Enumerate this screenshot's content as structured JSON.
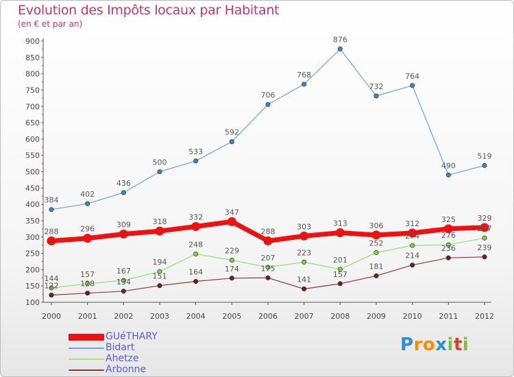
{
  "title": "Evolution des Impôts locaux par Habitant",
  "subtitle": "(en € et par an)",
  "logo": {
    "text": "Proxiti",
    "letter_colors": [
      "#2a8fd8",
      "#ff8a00",
      "#ff8a00",
      "#2a8fd8",
      "#7ac143",
      "#e03c31",
      "#7ac143"
    ]
  },
  "chart_data": {
    "type": "line",
    "x": [
      2000,
      2001,
      2002,
      2003,
      2004,
      2005,
      2006,
      2007,
      2008,
      2009,
      2010,
      2011,
      2012
    ],
    "ylim": [
      100,
      900
    ],
    "yticks": [
      100,
      150,
      200,
      250,
      300,
      350,
      400,
      450,
      500,
      550,
      600,
      650,
      700,
      750,
      800,
      850,
      900
    ],
    "grid": false,
    "legend_position": "bottom-left",
    "series": [
      {
        "name": "Bidart",
        "color": "#6ba3d6",
        "marker": "#3d84c8",
        "width": 1.2,
        "r": 3.2,
        "values": [
          384,
          402,
          436,
          500,
          533,
          592,
          706,
          768,
          876,
          732,
          764,
          490,
          519
        ]
      },
      {
        "name": "Ahetze",
        "color": "#a8e08a",
        "marker": "#7fd14a",
        "width": 1.5,
        "r": 3.2,
        "values": [
          144,
          157,
          167,
          194,
          248,
          229,
          207,
          223,
          201,
          252,
          274,
          276,
          297
        ]
      },
      {
        "name": "Arbonne",
        "color": "#8a3a3a",
        "marker": "#6e2020",
        "width": 1.2,
        "r": 3.2,
        "values": [
          122,
          128,
          134,
          151,
          164,
          174,
          175,
          141,
          157,
          181,
          214,
          236,
          239
        ]
      },
      {
        "name": "GUéTHARY",
        "color": "#ee1111",
        "marker": "#ee1111",
        "width": 7,
        "r": 6.5,
        "values": [
          288,
          296,
          309,
          318,
          332,
          347,
          288,
          303,
          313,
          306,
          312,
          325,
          329
        ]
      }
    ],
    "data_labels": [
      {
        "series": 0,
        "labels": [
          "384",
          "402",
          "436",
          "500",
          "533",
          "592",
          "706",
          "768",
          "876",
          "732",
          "764",
          "490",
          "519"
        ]
      },
      {
        "series": 3,
        "labels": [
          "288",
          "296",
          "309",
          "318",
          "332",
          "347",
          "288",
          "303",
          "313",
          "306",
          "312",
          "325",
          "329"
        ]
      },
      {
        "series": 1,
        "labels": [
          "144",
          "157",
          "167",
          "194",
          "248",
          "229",
          "207",
          "223",
          "201",
          "252",
          "274",
          "276",
          "297"
        ]
      },
      {
        "series": 2,
        "labels": [
          "122",
          "128",
          "134",
          "151",
          "164",
          "174",
          "175",
          "141",
          "157",
          "181",
          "214",
          "236",
          "239"
        ]
      }
    ],
    "legend": [
      {
        "label": "GUéTHARY",
        "series": 3
      },
      {
        "label": "Bidart",
        "series": 0
      },
      {
        "label": "Ahetze",
        "series": 1
      },
      {
        "label": "Arbonne",
        "series": 2
      }
    ]
  }
}
